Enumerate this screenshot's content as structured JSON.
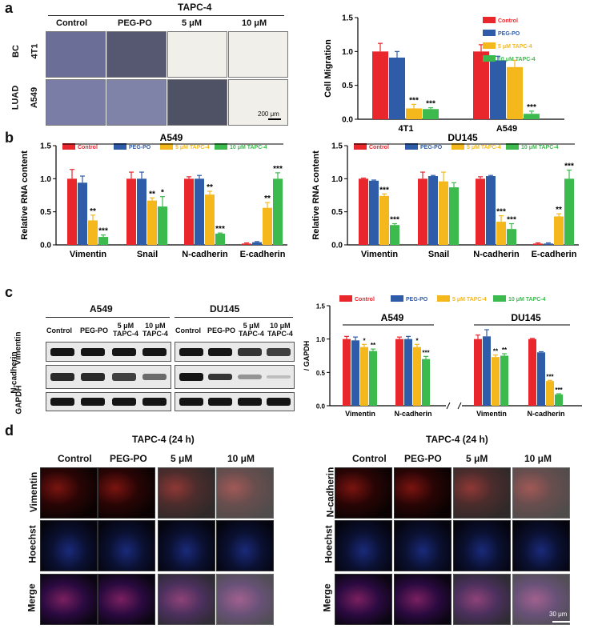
{
  "panels": {
    "a": {
      "letter": "a",
      "treatment_header": "TAPC-4",
      "columns": [
        "Control",
        "PEG-PO",
        "5 μM",
        "10 μM"
      ],
      "groups": [
        "BC",
        "LUAD"
      ],
      "rows": [
        "4T1",
        "A549"
      ],
      "scale_bar": "200 μm"
    },
    "b": {
      "letter": "b"
    },
    "c": {
      "letter": "c",
      "blot_groups": [
        "A549",
        "DU145"
      ],
      "blot_columns": [
        [
          "Control"
        ],
        [
          "PEG-PO"
        ],
        [
          "5 μM",
          "TAPC-4"
        ],
        [
          "10 μM",
          "TAPC-4"
        ]
      ],
      "blot_rows": [
        "Vimentin",
        "N-cadherin",
        "GAPDH"
      ]
    },
    "d": {
      "letter": "d",
      "left": {
        "header": "TAPC-4 (24 h)",
        "columns": [
          "Control",
          "PEG-PO",
          "5 μM",
          "10 μM"
        ],
        "rows": [
          "Vimentin",
          "Hoechst",
          "Merge"
        ]
      },
      "right": {
        "header": "TAPC-4 (24 h)",
        "columns": [
          "Control",
          "PEG-PO",
          "5 μM",
          "10 μM"
        ],
        "rows": [
          "N-cadherin",
          "Hoechst",
          "Merge"
        ]
      },
      "scale_bar": "30 μm"
    }
  },
  "colors": {
    "control": "#e8262b",
    "peg_po": "#2f5ca8",
    "tapc5": "#f5b81c",
    "tapc10": "#3dba4e"
  },
  "legend": [
    "Control",
    "PEG-PO",
    "5 μM TAPC-4",
    "10 μM TAPC-4"
  ],
  "chart_data": [
    {
      "id": "a-migration",
      "type": "bar",
      "ylabel": "Cell Migration",
      "ylim": [
        0,
        1.5
      ],
      "yticks": [
        "0.0",
        "0.5",
        "1.0",
        "1.5"
      ],
      "categories": [
        "4T1",
        "A549"
      ],
      "series": [
        {
          "name": "Control",
          "values": [
            1.0,
            1.0
          ],
          "err": [
            0.12,
            0.1
          ],
          "sig": [
            "",
            ""
          ]
        },
        {
          "name": "PEG-PO",
          "values": [
            0.91,
            0.87
          ],
          "err": [
            0.09,
            0.06
          ],
          "sig": [
            "",
            ""
          ]
        },
        {
          "name": "5 μM TAPC-4",
          "values": [
            0.16,
            0.77
          ],
          "err": [
            0.06,
            0.1
          ],
          "sig": [
            "***",
            ""
          ]
        },
        {
          "name": "10 μM TAPC-4",
          "values": [
            0.15,
            0.08
          ],
          "err": [
            0.02,
            0.04
          ],
          "sig": [
            "***",
            "***"
          ]
        }
      ]
    },
    {
      "id": "b-a549",
      "type": "bar",
      "title": "A549",
      "ylabel": "Relative RNA content",
      "ylim": [
        0,
        1.5
      ],
      "yticks": [
        "0.0",
        "0.5",
        "1.0",
        "1.5"
      ],
      "categories": [
        "Vimentin",
        "Snail",
        "N-cadherin",
        "E-cadherin"
      ],
      "series": [
        {
          "name": "Control",
          "values": [
            1.0,
            1.0,
            1.0,
            0.02
          ],
          "err": [
            0.14,
            0.1,
            0.03,
            0.01
          ],
          "sig": [
            "",
            "",
            "",
            ""
          ]
        },
        {
          "name": "PEG-PO",
          "values": [
            0.94,
            1.0,
            1.0,
            0.04
          ],
          "err": [
            0.1,
            0.1,
            0.05,
            0.01
          ],
          "sig": [
            "",
            "",
            "",
            ""
          ]
        },
        {
          "name": "5 μM TAPC-4",
          "values": [
            0.37,
            0.67,
            0.76,
            0.56
          ],
          "err": [
            0.08,
            0.04,
            0.05,
            0.08
          ],
          "sig": [
            "**",
            "**",
            "**",
            "**"
          ]
        },
        {
          "name": "10 μM TAPC-4",
          "values": [
            0.12,
            0.58,
            0.17,
            1.0
          ],
          "err": [
            0.03,
            0.15,
            0.01,
            0.09
          ],
          "sig": [
            "***",
            "*",
            "***",
            "***"
          ]
        }
      ]
    },
    {
      "id": "b-du145",
      "type": "bar",
      "title": "DU145",
      "ylabel": "Relative RNA content",
      "ylim": [
        0,
        1.5
      ],
      "yticks": [
        "0.0",
        "0.5",
        "1.0",
        "1.5"
      ],
      "categories": [
        "Vimentin",
        "Snail",
        "N-cadherin",
        "E-cadherin"
      ],
      "series": [
        {
          "name": "Control",
          "values": [
            1.0,
            1.0,
            1.0,
            0.02
          ],
          "err": [
            0.01,
            0.1,
            0.03,
            0.01
          ],
          "sig": [
            "",
            "",
            "",
            ""
          ]
        },
        {
          "name": "PEG-PO",
          "values": [
            0.97,
            1.04,
            1.04,
            0.02
          ],
          "err": [
            0.01,
            0.01,
            0.01,
            0.01
          ],
          "sig": [
            "",
            "",
            "",
            ""
          ]
        },
        {
          "name": "5 μM TAPC-4",
          "values": [
            0.74,
            0.96,
            0.35,
            0.43
          ],
          "err": [
            0.03,
            0.14,
            0.09,
            0.04
          ],
          "sig": [
            "***",
            "",
            "***",
            "**"
          ]
        },
        {
          "name": "10 μM TAPC-4",
          "values": [
            0.3,
            0.87,
            0.24,
            1.0
          ],
          "err": [
            0.02,
            0.07,
            0.08,
            0.13
          ],
          "sig": [
            "***",
            "",
            "***",
            "***"
          ]
        }
      ]
    },
    {
      "id": "c-protein",
      "type": "bar",
      "ylabel": "/ GAPDH",
      "ylim": [
        0,
        1.5
      ],
      "yticks": [
        "0.0",
        "0.5",
        "1.0",
        "1.5"
      ],
      "groups": [
        "A549",
        "DU145"
      ],
      "categories": [
        "Vimentin",
        "N-cadherin",
        "Vimentin",
        "N-cadherin"
      ],
      "series": [
        {
          "name": "Control",
          "values": [
            1.0,
            1.0,
            1.0,
            1.0
          ],
          "err": [
            0.04,
            0.03,
            0.06,
            0.01
          ],
          "sig": [
            "",
            "",
            "",
            ""
          ]
        },
        {
          "name": "PEG-PO",
          "values": [
            0.98,
            1.0,
            1.04,
            0.8
          ],
          "err": [
            0.05,
            0.04,
            0.1,
            0.01
          ],
          "sig": [
            "",
            "",
            "",
            ""
          ]
        },
        {
          "name": "5 μM TAPC-4",
          "values": [
            0.88,
            0.88,
            0.73,
            0.37
          ],
          "err": [
            0.04,
            0.04,
            0.03,
            0.01
          ],
          "sig": [
            "*",
            "*",
            "**",
            "***"
          ]
        },
        {
          "name": "10 μM TAPC-4",
          "values": [
            0.82,
            0.7,
            0.75,
            0.17
          ],
          "err": [
            0.03,
            0.04,
            0.03,
            0.01
          ],
          "sig": [
            "**",
            "***",
            "**",
            "***"
          ]
        }
      ]
    }
  ]
}
